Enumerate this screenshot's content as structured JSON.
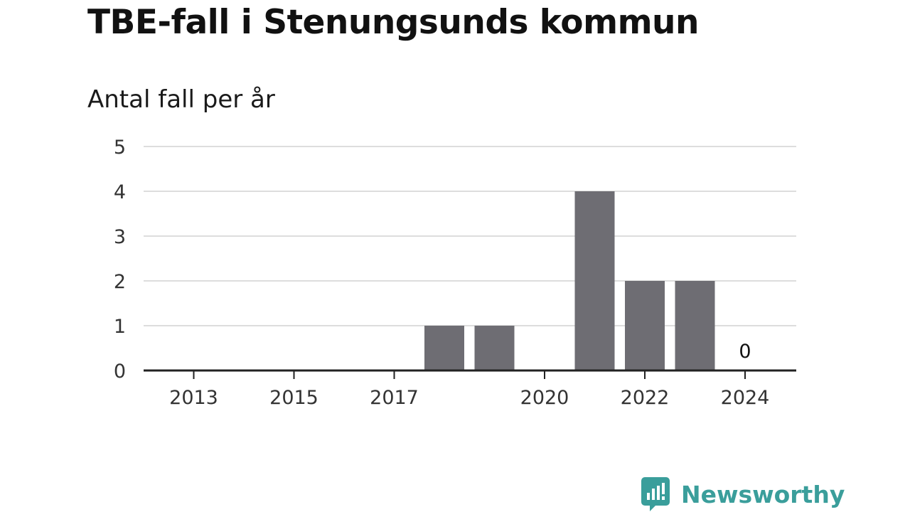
{
  "title": "TBE-fall i Stenungsunds kommun",
  "subtitle": "Antal fall per år",
  "brand": {
    "name": "Newsworthy",
    "icon": "newsworthy-logo-icon",
    "color": "#3a9e9b"
  },
  "chart_data": {
    "type": "bar",
    "title": "TBE-fall i Stenungsunds kommun",
    "subtitle": "Antal fall per år",
    "categories": [
      2013,
      2014,
      2015,
      2016,
      2017,
      2018,
      2019,
      2020,
      2021,
      2022,
      2023,
      2024
    ],
    "values": [
      0,
      0,
      0,
      0,
      0,
      1,
      1,
      0,
      4,
      2,
      2,
      0
    ],
    "x_tick_labels": [
      "2013",
      "2015",
      "2017",
      "2020",
      "2022",
      "2024"
    ],
    "y_ticks": [
      0,
      1,
      2,
      3,
      4,
      5
    ],
    "ylim": [
      0,
      5
    ],
    "data_labels": [
      {
        "category": 2024,
        "text": "0"
      }
    ],
    "grid": true,
    "bar_color": "#6e6d73",
    "grid_color": "#dddddd",
    "axis_color": "#222222"
  }
}
